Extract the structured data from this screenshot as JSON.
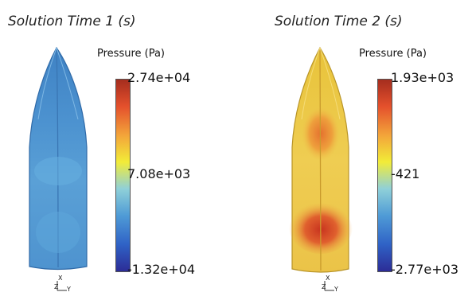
{
  "panels": [
    {
      "title": "Solution Time 1 (s)",
      "legend_title": "Pressure (Pa)",
      "ticks": {
        "max": "2.74e+04",
        "mid": "7.08e+03",
        "min": "-1.32e+04"
      },
      "axis": {
        "x": "X",
        "z": "Z",
        "y": "Y"
      },
      "hull_color": "#4e8fcc"
    },
    {
      "title": "Solution Time 2 (s)",
      "legend_title": "Pressure (Pa)",
      "ticks": {
        "max": "1.93e+03",
        "mid": "-421",
        "min": "-2.77e+03"
      },
      "axis": {
        "x": "X",
        "z": "Z",
        "y": "Y"
      },
      "hull_color": "#ecc24a"
    }
  ],
  "colormap": [
    "#2c2c96",
    "#2f62c6",
    "#4f9bd6",
    "#8fd0d8",
    "#f2ec38",
    "#f3a43a",
    "#e4502c",
    "#a52d1e"
  ]
}
